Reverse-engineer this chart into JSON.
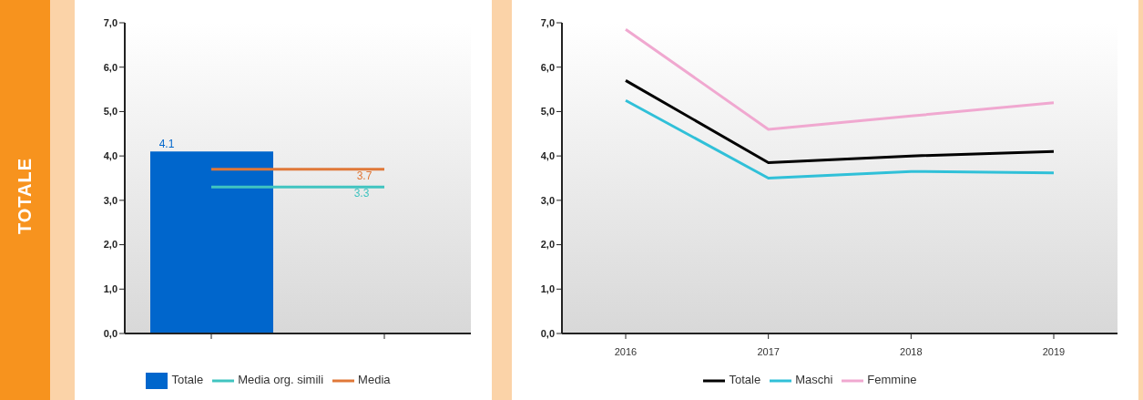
{
  "chart_data": [
    {
      "type": "bar",
      "title": "TOTALE",
      "categories": [
        null,
        null
      ],
      "series": [
        {
          "name": "Totale",
          "color": "#0066cc",
          "values": [
            4.1,
            null
          ],
          "value_labels": [
            "4.1",
            null
          ]
        },
        {
          "name": "Media org. simili",
          "type": "line",
          "color": "#40c4c0",
          "values": [
            3.3,
            3.3
          ],
          "value_labels": [
            null,
            "3.3"
          ]
        },
        {
          "name": "Media",
          "type": "line",
          "color": "#e07838",
          "values": [
            3.7,
            3.7
          ],
          "value_labels": [
            null,
            "3.7"
          ]
        }
      ],
      "ylim": [
        0,
        7
      ],
      "yticks": [
        {
          "value": 0,
          "label": "0,0"
        },
        {
          "value": 1,
          "label": "1,0"
        },
        {
          "value": 2,
          "label": "2,0"
        },
        {
          "value": 3,
          "label": "3,0"
        },
        {
          "value": 4,
          "label": "4,0"
        },
        {
          "value": 5,
          "label": "5,0"
        },
        {
          "value": 6,
          "label": "6,0"
        },
        {
          "value": 7,
          "label": "7,0"
        }
      ],
      "grid": false,
      "legend": "bottom"
    },
    {
      "type": "line",
      "categories": [
        "2016",
        "2017",
        "2018",
        "2019"
      ],
      "series": [
        {
          "name": "Totale",
          "color": "#000000",
          "values": [
            5.7,
            3.85,
            4.0,
            4.1
          ]
        },
        {
          "name": "Maschi",
          "color": "#30c0d8",
          "values": [
            5.25,
            3.5,
            3.65,
            3.62
          ]
        },
        {
          "name": "Femmine",
          "color": "#f0a8d0",
          "values": [
            6.85,
            4.6,
            4.9,
            5.2
          ]
        }
      ],
      "ylim": [
        0,
        7
      ],
      "yticks": [
        {
          "value": 0,
          "label": "0,0"
        },
        {
          "value": 1,
          "label": "1,0"
        },
        {
          "value": 2,
          "label": "2,0"
        },
        {
          "value": 3,
          "label": "3,0"
        },
        {
          "value": 4,
          "label": "4,0"
        },
        {
          "value": 5,
          "label": "5,0"
        },
        {
          "value": 6,
          "label": "6,0"
        },
        {
          "value": 7,
          "label": "7,0"
        }
      ],
      "grid": false,
      "legend": "bottom",
      "marker": "none"
    }
  ]
}
